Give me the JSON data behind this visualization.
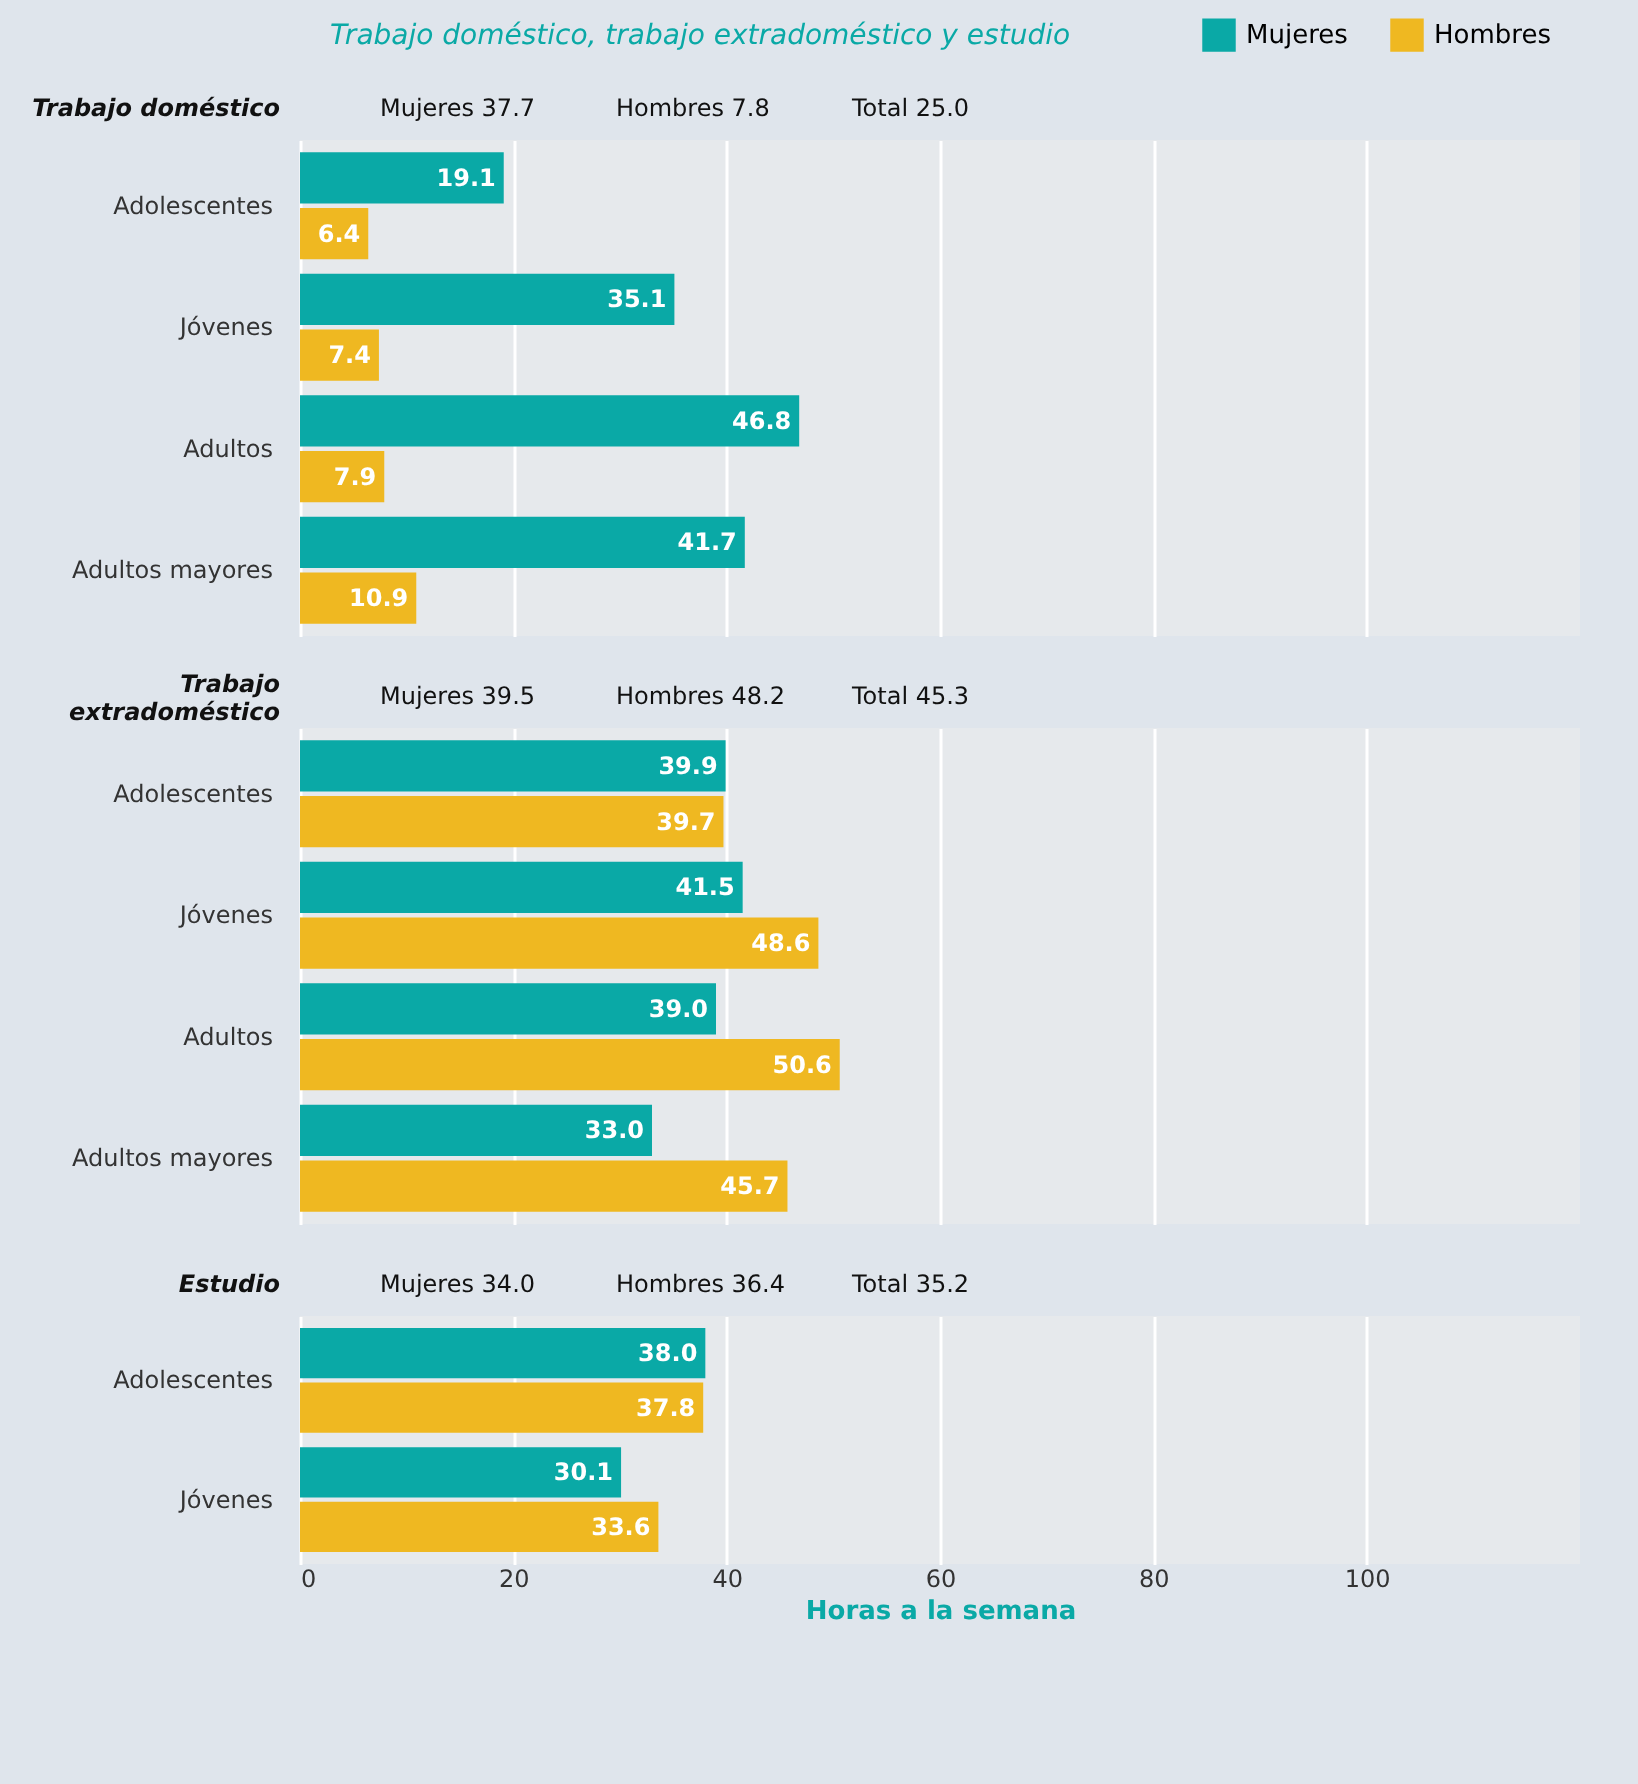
{
  "chart_data": [
    {
      "type": "bar",
      "orientation": "horizontal",
      "title": "Trabajo doméstico, trabajo extradoméstico y estudio",
      "subtitle": "Trabajo doméstico",
      "annotations": [
        "Mujeres 37.7",
        "Hombres 7.8",
        "Total 25.0"
      ],
      "categories": [
        "Adolescentes",
        "Jóvenes",
        "Adultos",
        "Adultos mayores"
      ],
      "series": [
        {
          "name": "Mujeres",
          "color": "#0aa9a6",
          "values": [
            19.1,
            35.1,
            46.8,
            41.7
          ],
          "value_labels": [
            "19.1",
            "35.1",
            "46.8",
            "41.7"
          ]
        },
        {
          "name": "Hombres",
          "color": "#efb821",
          "values": [
            6.4,
            7.4,
            7.9,
            10.9
          ],
          "value_labels": [
            "6.4",
            "7.4",
            "7.9",
            "10.9"
          ]
        }
      ],
      "xlim": [
        0,
        120
      ],
      "xticks": [
        0,
        20,
        40,
        60,
        80,
        100
      ],
      "grid": "x",
      "legend": "top right",
      "tick_labels": "y"
    },
    {
      "type": "bar",
      "orientation": "horizontal",
      "subtitle": "Trabajo extradoméstico",
      "annotations": [
        "Mujeres 39.5",
        "Hombres 48.2",
        "Total 45.3"
      ],
      "categories": [
        "Adolescentes",
        "Jóvenes",
        "Adultos",
        "Adultos mayores"
      ],
      "series": [
        {
          "color": "#0aa9a6",
          "values": [
            39.9,
            41.5,
            39.0,
            33.0
          ],
          "value_labels": [
            "39.9",
            "41.5",
            "39.0",
            "33.0"
          ]
        },
        {
          "color": "#efb821",
          "values": [
            39.7,
            48.6,
            50.6,
            45.7
          ],
          "value_labels": [
            "39.7",
            "48.6",
            "50.6",
            "45.7"
          ]
        }
      ],
      "xlim": [
        0,
        120
      ],
      "xticks": [
        0,
        20,
        40,
        60,
        80,
        100
      ],
      "grid": "x",
      "tick_labels": "y"
    },
    {
      "type": "bar",
      "orientation": "horizontal",
      "subtitle": "Estudio",
      "annotations": [
        "Mujeres 34.0",
        "Hombres 36.4",
        "Total 35.2"
      ],
      "categories": [
        "Adolescentes",
        "Jóvenes"
      ],
      "series": [
        {
          "color": "#0aa9a6",
          "values": [
            38.0,
            30.1
          ],
          "value_labels": [
            "38.0",
            "30.1"
          ]
        },
        {
          "color": "#efb821",
          "values": [
            37.8,
            33.6
          ],
          "value_labels": [
            "37.8",
            "33.6"
          ]
        }
      ],
      "xlim": [
        0,
        120
      ],
      "xticks": [
        0,
        20,
        40,
        60,
        80,
        100
      ],
      "grid": "x",
      "xlabel": "Horas a la semana"
    }
  ]
}
